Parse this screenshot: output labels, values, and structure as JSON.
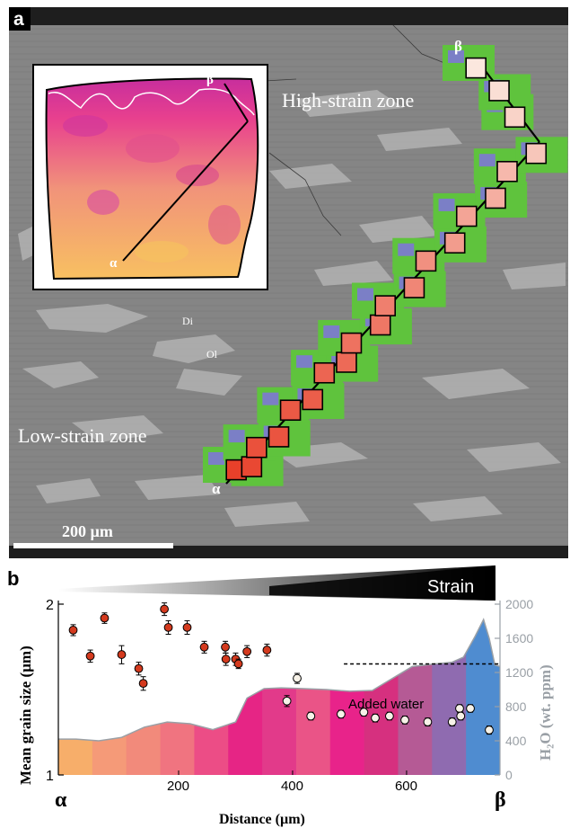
{
  "panel_a": {
    "letter": "a",
    "inset_labels": {
      "start": "α",
      "end": "β"
    },
    "transect_labels": {
      "start": "α",
      "end": "β"
    },
    "zone_high": "High-strain zone",
    "zone_low": "Low-strain zone",
    "mineral_di": "Di",
    "mineral_ol": "Ol",
    "scale_bar": "200 µm",
    "colors": {
      "background": "#8a8a8a",
      "diopside_green": "#5fc33d",
      "olivine_blue": "#7b7fc6"
    },
    "grain_squares": [
      {
        "f": 0.0,
        "v": 0.0
      },
      {
        "f": 0.02,
        "v": 0.05
      },
      {
        "f": 0.06,
        "v": 0.1
      },
      {
        "f": 0.1,
        "v": 0.12
      },
      {
        "f": 0.16,
        "v": 0.15
      },
      {
        "f": 0.2,
        "v": 0.18
      },
      {
        "f": 0.26,
        "v": 0.22
      },
      {
        "f": 0.3,
        "v": 0.25
      },
      {
        "f": 0.34,
        "v": 0.3
      },
      {
        "f": 0.4,
        "v": 0.33
      },
      {
        "f": 0.44,
        "v": 0.38
      },
      {
        "f": 0.5,
        "v": 0.42
      },
      {
        "f": 0.56,
        "v": 0.48
      },
      {
        "f": 0.62,
        "v": 0.55
      },
      {
        "f": 0.68,
        "v": 0.6
      },
      {
        "f": 0.74,
        "v": 0.66
      },
      {
        "f": 0.8,
        "v": 0.72
      },
      {
        "f": 0.86,
        "v": 0.8
      },
      {
        "f": 0.92,
        "v": 0.88
      },
      {
        "f": 0.97,
        "v": 0.95
      },
      {
        "f": 1.0,
        "v": 1.0
      }
    ]
  },
  "panel_b": {
    "letter": "b",
    "strain_label": "Strain",
    "added_water_label": "Added water",
    "x_start_label": "α",
    "x_end_label": "β",
    "chart_data": {
      "type": "scatter",
      "xlabel": "Distance (µm)",
      "ylabel_left": "Mean grain size (µm)",
      "ylabel_right": "H₂O (wt. ppm)",
      "x_ticks": [
        0,
        200,
        400,
        600
      ],
      "y_left_ticks": [
        "1",
        "2"
      ],
      "y_left_log": true,
      "y_left_lim": [
        1,
        2
      ],
      "y_right_ticks": [
        0,
        400,
        800,
        1200,
        1600,
        2000
      ],
      "y_right_lim": [
        0,
        2000
      ],
      "xlim": [
        0,
        740
      ],
      "added_water_ppm": 1300,
      "grain_size": [
        {
          "x": 15,
          "y": 1.8,
          "err": 0.04
        },
        {
          "x": 45,
          "y": 1.62,
          "err": 0.04
        },
        {
          "x": 70,
          "y": 1.89,
          "err": 0.04
        },
        {
          "x": 100,
          "y": 1.63,
          "err": 0.06
        },
        {
          "x": 130,
          "y": 1.54,
          "err": 0.04
        },
        {
          "x": 138,
          "y": 1.45,
          "err": 0.04
        },
        {
          "x": 175,
          "y": 1.96,
          "err": 0.05
        },
        {
          "x": 182,
          "y": 1.82,
          "err": 0.05
        },
        {
          "x": 215,
          "y": 1.82,
          "err": 0.05
        },
        {
          "x": 245,
          "y": 1.68,
          "err": 0.04
        },
        {
          "x": 282,
          "y": 1.68,
          "err": 0.04
        },
        {
          "x": 283,
          "y": 1.6,
          "err": 0.04
        },
        {
          "x": 300,
          "y": 1.6,
          "err": 0.04
        },
        {
          "x": 305,
          "y": 1.57,
          "err": 0.03
        },
        {
          "x": 320,
          "y": 1.65,
          "err": 0.04
        },
        {
          "x": 355,
          "y": 1.66,
          "err": 0.04
        },
        {
          "x": 390,
          "y": 1.35,
          "err": 0.03
        },
        {
          "x": 408,
          "y": 1.48,
          "err": 0.03
        },
        {
          "x": 432,
          "y": 1.27,
          "err": 0.02
        },
        {
          "x": 485,
          "y": 1.28,
          "err": 0.02
        },
        {
          "x": 525,
          "y": 1.29,
          "err": 0.02
        },
        {
          "x": 545,
          "y": 1.26,
          "err": 0.02
        },
        {
          "x": 570,
          "y": 1.27,
          "err": 0.02
        },
        {
          "x": 597,
          "y": 1.25,
          "err": 0.02
        },
        {
          "x": 637,
          "y": 1.24,
          "err": 0.02
        },
        {
          "x": 680,
          "y": 1.24,
          "err": 0.02
        },
        {
          "x": 693,
          "y": 1.31,
          "err": 0.02
        },
        {
          "x": 695,
          "y": 1.27,
          "err": 0.02
        },
        {
          "x": 712,
          "y": 1.31,
          "err": 0.02
        },
        {
          "x": 745,
          "y": 1.2,
          "err": 0.02
        }
      ],
      "h2o_profile": [
        {
          "x": -15,
          "y": 420
        },
        {
          "x": 20,
          "y": 420
        },
        {
          "x": 60,
          "y": 400
        },
        {
          "x": 100,
          "y": 440
        },
        {
          "x": 140,
          "y": 560
        },
        {
          "x": 180,
          "y": 620
        },
        {
          "x": 220,
          "y": 600
        },
        {
          "x": 260,
          "y": 530
        },
        {
          "x": 300,
          "y": 620
        },
        {
          "x": 320,
          "y": 900
        },
        {
          "x": 350,
          "y": 1010
        },
        {
          "x": 380,
          "y": 1020
        },
        {
          "x": 420,
          "y": 1010
        },
        {
          "x": 460,
          "y": 1000
        },
        {
          "x": 500,
          "y": 980
        },
        {
          "x": 540,
          "y": 990
        },
        {
          "x": 580,
          "y": 1150
        },
        {
          "x": 610,
          "y": 1270
        },
        {
          "x": 650,
          "y": 1300
        },
        {
          "x": 680,
          "y": 1320
        },
        {
          "x": 700,
          "y": 1380
        },
        {
          "x": 720,
          "y": 1620
        },
        {
          "x": 735,
          "y": 1820
        },
        {
          "x": 745,
          "y": 1600
        },
        {
          "x": 755,
          "y": 1290
        },
        {
          "x": 765,
          "y": 1270
        }
      ],
      "band_colors": [
        "#f7ae6a",
        "#f59a78",
        "#f28a7b",
        "#f07480",
        "#ec4d86",
        "#e62585",
        "#e23a8a",
        "#ea5487",
        "#e8238a",
        "#d6307f",
        "#b55a95",
        "#8f6bb0",
        "#4f8cd0"
      ],
      "series_colors": {
        "h2o_area": "#f2b06c",
        "h2o_outline": "#9aa0a6",
        "point_high": "#d43a1e",
        "point_low": "#f7f2e8"
      }
    }
  }
}
